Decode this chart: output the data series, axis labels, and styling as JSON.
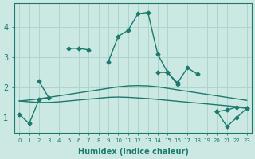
{
  "xlabel": "Humidex (Indice chaleur)",
  "bg_color": "#cce8e3",
  "grid_color": "#afd4ce",
  "line_color": "#1a7a6e",
  "xlim": [
    -0.5,
    23.5
  ],
  "ylim": [
    0.5,
    4.8
  ],
  "yticks": [
    1,
    2,
    3,
    4
  ],
  "xticks": [
    0,
    1,
    2,
    3,
    4,
    5,
    6,
    7,
    8,
    9,
    10,
    11,
    12,
    13,
    14,
    15,
    16,
    17,
    18,
    19,
    20,
    21,
    22,
    23
  ],
  "lines": [
    {
      "x": [
        0,
        1,
        2,
        3,
        5,
        6,
        7,
        9,
        10,
        11,
        12,
        13,
        14,
        15,
        16,
        20,
        21,
        22,
        23
      ],
      "y": [
        1.1,
        0.8,
        1.6,
        1.65,
        3.3,
        3.3,
        3.25,
        2.85,
        3.7,
        3.9,
        4.45,
        4.5,
        3.1,
        2.5,
        2.1,
        1.2,
        0.7,
        1.0,
        1.3
      ],
      "marker": "D",
      "markersize": 2.5,
      "linewidth": 1.0,
      "segments": [
        [
          0,
          1,
          2,
          3
        ],
        [
          5,
          6,
          7
        ],
        [
          9,
          10,
          11,
          12,
          13,
          14,
          15,
          16
        ],
        [
          20,
          21,
          22,
          23
        ]
      ]
    },
    {
      "x": [
        0,
        1,
        2,
        3,
        4,
        5,
        6,
        7,
        8,
        9,
        10,
        11,
        12,
        13,
        14,
        15,
        16,
        17,
        18,
        19,
        20,
        21,
        22,
        23
      ],
      "y": [
        1.55,
        1.58,
        1.62,
        1.67,
        1.72,
        1.77,
        1.82,
        1.87,
        1.92,
        1.97,
        2.02,
        2.05,
        2.06,
        2.05,
        2.02,
        1.97,
        1.92,
        1.87,
        1.82,
        1.77,
        1.72,
        1.67,
        1.62,
        1.57
      ],
      "marker": null,
      "markersize": 0,
      "linewidth": 1.0,
      "segments": null
    },
    {
      "x": [
        0,
        1,
        2,
        3,
        4,
        5,
        6,
        7,
        8,
        9,
        10,
        11,
        12,
        13,
        14,
        15,
        16,
        17,
        18,
        19,
        20,
        21,
        22,
        23
      ],
      "y": [
        1.55,
        1.52,
        1.5,
        1.5,
        1.52,
        1.55,
        1.58,
        1.61,
        1.64,
        1.67,
        1.68,
        1.67,
        1.65,
        1.63,
        1.6,
        1.57,
        1.54,
        1.51,
        1.48,
        1.45,
        1.42,
        1.39,
        1.36,
        1.33
      ],
      "marker": null,
      "markersize": 0,
      "linewidth": 1.0,
      "segments": null
    },
    {
      "x": [
        2,
        3,
        14,
        15,
        16,
        17,
        18,
        20,
        21,
        22,
        23
      ],
      "y": [
        2.2,
        1.65,
        2.5,
        2.5,
        2.15,
        2.65,
        2.45,
        1.2,
        1.25,
        1.35,
        1.3
      ],
      "marker": "D",
      "markersize": 2.5,
      "linewidth": 1.0,
      "segments": [
        [
          2,
          3
        ],
        [
          14,
          15,
          16,
          17,
          18
        ],
        [
          20,
          21,
          22,
          23
        ]
      ]
    }
  ]
}
